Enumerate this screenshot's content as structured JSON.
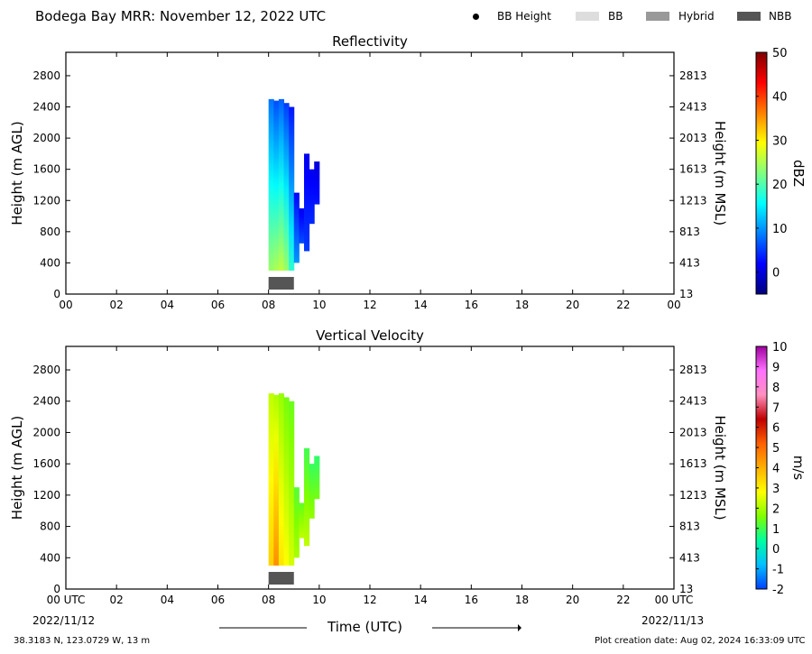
{
  "header": {
    "title": "Bodega Bay MRR:  November 12, 2022 UTC",
    "legend": [
      {
        "label": "BB Height",
        "kind": "dot",
        "color": "#000000"
      },
      {
        "label": "BB",
        "kind": "box",
        "color": "#dddddd"
      },
      {
        "label": "Hybrid",
        "kind": "box",
        "color": "#999999"
      },
      {
        "label": "NBB",
        "kind": "box",
        "color": "#555555"
      }
    ]
  },
  "footer": {
    "location": "38.3183 N, 123.0729 W, 13 m",
    "creation": "Plot creation date: Aug 02, 2024 16:33:09 UTC",
    "xlabel": "Time (UTC)",
    "date_left": "2022/11/12",
    "date_right": "2022/11/13"
  },
  "chart_data": [
    {
      "type": "heatmap",
      "title": "Reflectivity",
      "ylabel": "Height (m AGL)",
      "ylabel_right": "Height (m MSL)",
      "colorbar_label": "dBZ",
      "colorbar_ticks": [
        "50",
        "40",
        "30",
        "20",
        "10",
        "0"
      ],
      "colorbar_range": [
        -5,
        50
      ],
      "colorbar_colors": [
        "#00007f",
        "#0000ff",
        "#0080ff",
        "#00ffff",
        "#80ff80",
        "#ffff00",
        "#ff8000",
        "#ff0000",
        "#7f0000"
      ],
      "x_ticks": [
        "00",
        "02",
        "04",
        "06",
        "08",
        "10",
        "12",
        "14",
        "16",
        "18",
        "20",
        "22",
        "00"
      ],
      "y_ticks": [
        "0",
        "400",
        "800",
        "1200",
        "1600",
        "2000",
        "2400",
        "2800"
      ],
      "y_ticks_right": [
        "13",
        "413",
        "813",
        "1213",
        "1613",
        "2013",
        "2413",
        "2813"
      ],
      "xlim": [
        0,
        24
      ],
      "ylim": [
        0,
        3100
      ],
      "data_columns": [
        {
          "time": 8.0,
          "bottom": 300,
          "top": 2500,
          "low_dbz": 24,
          "high_dbz": 8
        },
        {
          "time": 8.2,
          "bottom": 300,
          "top": 2480,
          "low_dbz": 25,
          "high_dbz": 6
        },
        {
          "time": 8.4,
          "bottom": 300,
          "top": 2500,
          "low_dbz": 26,
          "high_dbz": 7
        },
        {
          "time": 8.6,
          "bottom": 300,
          "top": 2450,
          "low_dbz": 24,
          "high_dbz": 5
        },
        {
          "time": 8.8,
          "bottom": 300,
          "top": 2400,
          "low_dbz": 18,
          "high_dbz": 3
        },
        {
          "time": 9.0,
          "bottom": 400,
          "top": 1300,
          "low_dbz": 10,
          "high_dbz": 2
        },
        {
          "time": 9.2,
          "bottom": 650,
          "top": 1100,
          "low_dbz": 6,
          "high_dbz": 1
        },
        {
          "time": 9.4,
          "bottom": 550,
          "top": 1800,
          "low_dbz": 5,
          "high_dbz": 1
        },
        {
          "time": 9.6,
          "bottom": 900,
          "top": 1600,
          "low_dbz": 4,
          "high_dbz": 1
        },
        {
          "time": 9.8,
          "bottom": 1150,
          "top": 1700,
          "low_dbz": 3,
          "high_dbz": 0
        }
      ],
      "bb_blocks": [
        {
          "start": 8.0,
          "end": 9.0,
          "type": "NBB"
        }
      ]
    },
    {
      "type": "heatmap",
      "title": "Vertical Velocity",
      "ylabel": "Height (m AGL)",
      "ylabel_right": "Height (m MSL)",
      "colorbar_label": "m/s",
      "colorbar_ticks": [
        "10",
        "9",
        "8",
        "7",
        "6",
        "5",
        "4",
        "3",
        "2",
        "1",
        "0",
        "-1",
        "-2"
      ],
      "colorbar_range": [
        -2,
        10
      ],
      "colorbar_colors": [
        "#0040ff",
        "#00c0ff",
        "#00ffa0",
        "#80ff00",
        "#ffff00",
        "#ffb000",
        "#ff6000",
        "#c00000",
        "#ff90c0",
        "#ff70ff",
        "#a000a0"
      ],
      "x_ticks": [
        "00 UTC",
        "02",
        "04",
        "06",
        "08",
        "10",
        "12",
        "14",
        "16",
        "18",
        "20",
        "22",
        "00 UTC"
      ],
      "y_ticks": [
        "0",
        "400",
        "800",
        "1200",
        "1600",
        "2000",
        "2400",
        "2800"
      ],
      "y_ticks_right": [
        "13",
        "413",
        "813",
        "1213",
        "1613",
        "2013",
        "2413",
        "2813"
      ],
      "xlim": [
        0,
        24
      ],
      "ylim": [
        0,
        3100
      ],
      "data_columns": [
        {
          "time": 8.0,
          "bottom": 300,
          "top": 2500,
          "low_ms": 3.5,
          "high_ms": 2.2
        },
        {
          "time": 8.2,
          "bottom": 300,
          "top": 2480,
          "low_ms": 4.5,
          "high_ms": 2.0
        },
        {
          "time": 8.4,
          "bottom": 300,
          "top": 2500,
          "low_ms": 3.2,
          "high_ms": 1.8
        },
        {
          "time": 8.6,
          "bottom": 300,
          "top": 2450,
          "low_ms": 2.8,
          "high_ms": 1.5
        },
        {
          "time": 8.8,
          "bottom": 300,
          "top": 2400,
          "low_ms": 2.4,
          "high_ms": 1.4
        },
        {
          "time": 9.0,
          "bottom": 400,
          "top": 1300,
          "low_ms": 2.0,
          "high_ms": 1.2
        },
        {
          "time": 9.2,
          "bottom": 650,
          "top": 1100,
          "low_ms": 2.2,
          "high_ms": 1.3
        },
        {
          "time": 9.4,
          "bottom": 550,
          "top": 1800,
          "low_ms": 2.2,
          "high_ms": 1.0
        },
        {
          "time": 9.6,
          "bottom": 900,
          "top": 1600,
          "low_ms": 1.8,
          "high_ms": 0.9
        },
        {
          "time": 9.8,
          "bottom": 1150,
          "top": 1700,
          "low_ms": 1.5,
          "high_ms": 0.8
        }
      ],
      "bb_blocks": [
        {
          "start": 8.0,
          "end": 9.0,
          "type": "NBB"
        }
      ]
    }
  ]
}
